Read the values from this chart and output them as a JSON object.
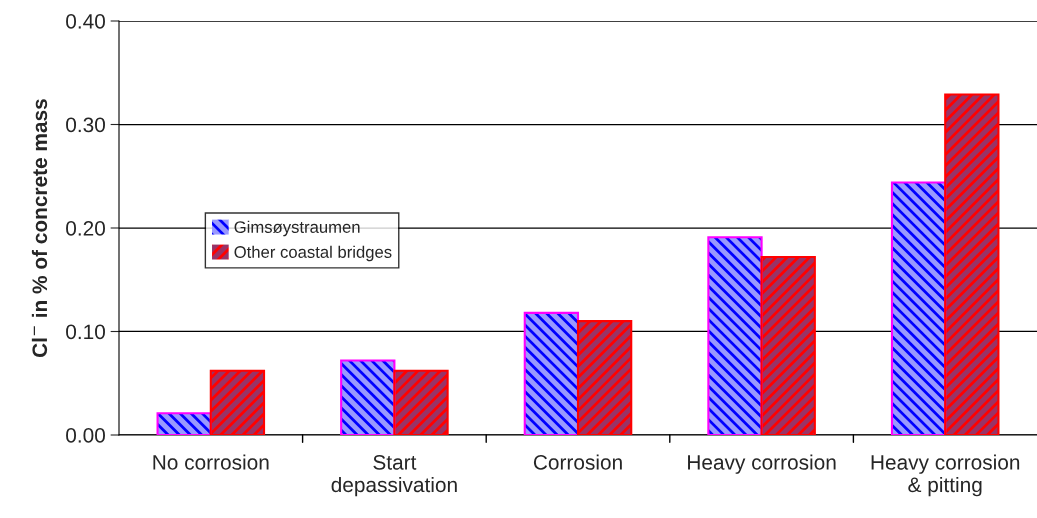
{
  "chart_data": {
    "type": "bar",
    "ylabel": "Cl$^{−}$ in % of concrete mass",
    "categories": [
      "No corrosion",
      "Start\ndepassivation",
      "Corrosion",
      "Heavy corrosion",
      "Heavy corrosion\n& pitting"
    ],
    "series": [
      {
        "name": "Gimsøystraumen",
        "color": "#9999ff",
        "values": [
          0.021,
          0.072,
          0.118,
          0.191,
          0.244
        ]
      },
      {
        "name": "Other coastal bridges",
        "color": "#993366",
        "values": [
          0.062,
          0.062,
          0.11,
          0.172,
          0.329
        ]
      }
    ],
    "ylim": [
      0,
      0.4
    ],
    "yticks": [
      {
        "value": 0,
        "label": "0.00"
      },
      {
        "value": 0.1,
        "label": "0.10"
      },
      {
        "value": 0.2,
        "label": "0.20"
      },
      {
        "value": 0.3,
        "label": "0.30"
      },
      {
        "value": 0.4,
        "label": "0.40"
      }
    ],
    "grid": "y",
    "legend": "left"
  }
}
